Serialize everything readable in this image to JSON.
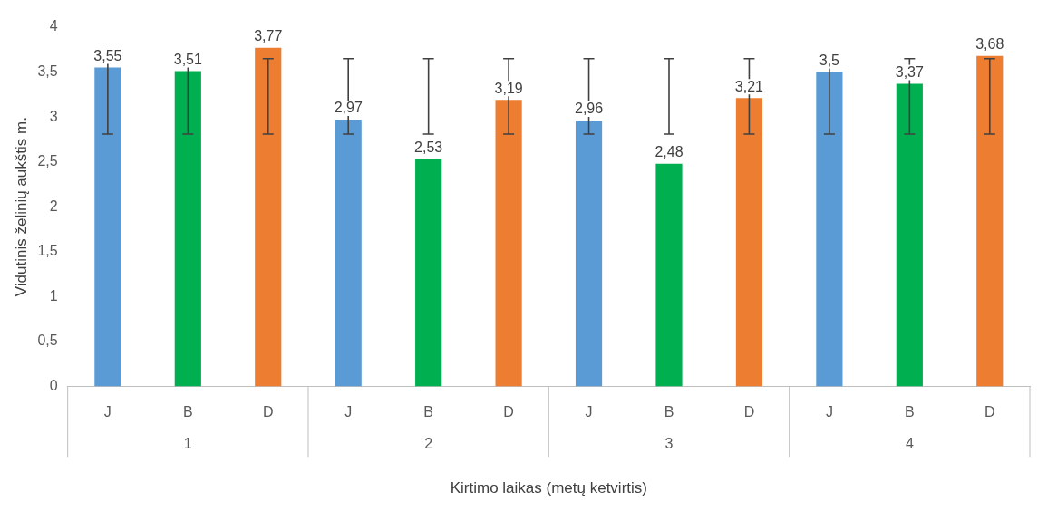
{
  "chart_data": {
    "type": "bar",
    "xlabel": "Kirtimo laikas (metų ketvirtis)",
    "ylabel": "Vidutinis želinių aukštis m.",
    "categories": [
      "J",
      "B",
      "D",
      "J",
      "B",
      "D",
      "J",
      "B",
      "D",
      "J",
      "B",
      "D"
    ],
    "values": [
      3.55,
      3.51,
      3.77,
      2.97,
      2.53,
      3.19,
      2.96,
      2.48,
      3.21,
      3.5,
      3.37,
      3.68
    ],
    "colors": [
      "#5b9bd5",
      "#00b050",
      "#ed7d31",
      "#5b9bd5",
      "#00b050",
      "#ed7d31",
      "#5b9bd5",
      "#00b050",
      "#ed7d31",
      "#5b9bd5",
      "#00b050",
      "#ed7d31"
    ],
    "value_labels": [
      "3,55",
      "3,51",
      "3,77",
      "2,97",
      "2,53",
      "3,19",
      "2,96",
      "2,48",
      "3,21",
      "3,5",
      "3,37",
      "3,68"
    ],
    "errors": [
      [
        2.81,
        3.65
      ],
      [
        2.81,
        3.65
      ],
      [
        2.81,
        3.65
      ],
      [
        2.81,
        3.65
      ],
      [
        2.81,
        3.65
      ],
      [
        2.81,
        3.65
      ],
      [
        2.81,
        3.65
      ],
      [
        2.81,
        3.65
      ],
      [
        2.81,
        3.65
      ],
      [
        2.81,
        3.65
      ],
      [
        2.81,
        3.65
      ],
      [
        2.81,
        3.65
      ]
    ],
    "annotations": [
      "1",
      "2",
      "3",
      "4"
    ],
    "ylim": [
      0,
      4
    ],
    "yticks": [
      0,
      {
        "value": 0.5,
        "label": "0,5"
      },
      1,
      {
        "value": 1.5,
        "label": "1,5"
      },
      2,
      {
        "value": 2.5,
        "label": "2,5"
      },
      3,
      {
        "value": 3.5,
        "label": "3,5"
      },
      4
    ],
    "grid": false,
    "legend": false
  }
}
